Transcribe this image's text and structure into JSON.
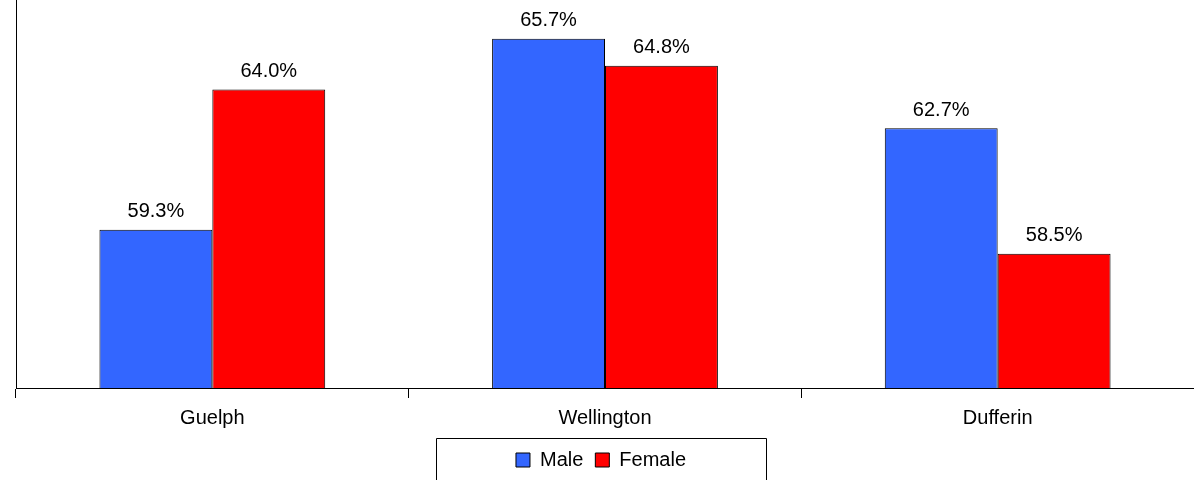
{
  "chart_data": {
    "type": "bar",
    "categories": [
      "Guelph",
      "Wellington",
      "Dufferin"
    ],
    "series": [
      {
        "name": "Male",
        "color": "#3366ff",
        "values": [
          59.3,
          65.7,
          62.7
        ],
        "value_labels": [
          "59.3%",
          "65.7%",
          "62.7%"
        ]
      },
      {
        "name": "Female",
        "color": "#ff0000",
        "values": [
          64.0,
          64.8,
          58.5
        ],
        "value_labels": [
          "64.0%",
          "64.8%",
          "58.5%"
        ]
      }
    ],
    "ylim": [
      54,
      67
    ],
    "tick_labels": "x",
    "grid": false,
    "legend": "bottom"
  }
}
